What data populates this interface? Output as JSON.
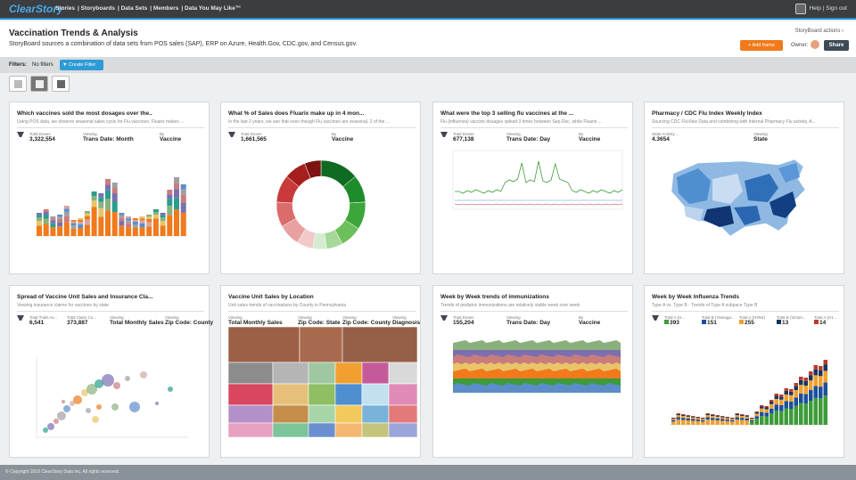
{
  "app": {
    "logo": "ClearStory",
    "nav": [
      "Stories",
      "Storyboards",
      "Data Sets",
      "Members",
      "Data You May Like™"
    ],
    "help": "Help",
    "signout": "Sign out"
  },
  "page": {
    "title": "Vaccination Trends & Analysis",
    "subtitle": "StoryBoard sources a combination of data sets from POS sales (SAP), ERP on Azure, Health.Gov, CDC.gov, and Census.gov.",
    "actions": "StoryBoard actions ›",
    "add_frame": "+ Add frame",
    "owner": "Owner:",
    "share": "Share"
  },
  "filters": {
    "label": "Filters:",
    "none": "No filters",
    "create": "▼ Create Filter"
  },
  "colors": {
    "topbar": "#3b3d40",
    "accent": "#1f8fd0",
    "orange": "#f07a1c",
    "green": "#3d9b3a"
  },
  "cards": [
    {
      "title": "Which vaccines sold the most dosages over the..",
      "desc": "Using POS data, we observe seasonal sales cycle for Flu vaccines. Fluarix makes ...",
      "metrics": [
        {
          "l": "Total Doses",
          "v": "3,322,554"
        },
        {
          "l": "Viewing",
          "v": "Trans Date: Month"
        },
        {
          "l": "By",
          "v": "Vaccine"
        }
      ]
    },
    {
      "title": "What % of Sales does Fluarix make up in 4 mon...",
      "desc": "In the last 2 years, we see that even though Flu vaccines are seasonal, 2 of the ...",
      "metrics": [
        {
          "l": "Total Doses",
          "v": "1,661,565"
        },
        {
          "l": "By",
          "v": "Vaccine"
        }
      ]
    },
    {
      "title": "What were the top 3 selling flu vaccines at the ...",
      "desc": "Flu (influenza) vaccine dosages spiked 3 times between Sep-Dec, while Fluarix ...",
      "metrics": [
        {
          "l": "Total Doses",
          "v": "677,138"
        },
        {
          "l": "Viewing",
          "v": "Trans Date: Day"
        },
        {
          "l": "By",
          "v": "Vaccine"
        }
      ]
    },
    {
      "title": "Pharmacy / CDC Flu Index Weekly Index",
      "desc": "Sourcing CDC FluView Data and combining with Internal Pharmacy Flu activity. A...",
      "metrics": [
        {
          "l": "State Activity ...",
          "v": "4.3654"
        },
        {
          "l": "Viewing",
          "v": "State"
        }
      ]
    },
    {
      "title": "Spread of Vaccine Unit Sales and Insurance Cla...",
      "desc": "Viewing insurance claims for vaccines by state",
      "metrics": [
        {
          "l": "Total Trials Av...",
          "v": "6,541"
        },
        {
          "l": "Total Claim Co...",
          "v": "373,887"
        },
        {
          "l": "Viewing",
          "v": "Total Monthly Sales"
        },
        {
          "l": "Viewing",
          "v": "Zip Code: County"
        }
      ]
    },
    {
      "title": "Vaccine Unit Sales by Location",
      "desc": "Unit sales trends of vaccinations by County in Pennsylvania",
      "metrics": [
        {
          "l": "Viewing",
          "v": "Total Monthly Sales"
        },
        {
          "l": "Viewing",
          "v": "Zip Code: State"
        },
        {
          "l": "Viewing",
          "v": "Zip Code: County"
        },
        {
          "l": "Viewing",
          "v": "Diagnosis"
        }
      ]
    },
    {
      "title": "Week by Week trends of immunizations",
      "desc": "Trends of pediatric immunizations are relatively stable week over week",
      "metrics": [
        {
          "l": "Total Doses",
          "v": "155,204"
        },
        {
          "l": "Viewing",
          "v": "Trans Date: Day"
        },
        {
          "l": "By",
          "v": "Vaccine"
        }
      ]
    },
    {
      "title": "Week by Week Influenza Trends",
      "desc": "Type A vs. Type B - Trends of Type A subpace Type B",
      "metrics": [
        {
          "l": "Total A (H...",
          "v": "393"
        },
        {
          "l": "Total B (Yamaga...",
          "v": "151"
        },
        {
          "l": "Total A (H3N2)",
          "v": "255"
        },
        {
          "l": "Total B (Victori...",
          "v": "13"
        },
        {
          "l": "Total A (H1...",
          "v": "14"
        }
      ]
    }
  ],
  "swatches": [
    "#3d9b3a",
    "#1c4f9c",
    "#f0a030",
    "#17365d",
    "#c0392b"
  ],
  "footer": "© Copyright 2016 ClearStory Data Inc. All rights reserved."
}
